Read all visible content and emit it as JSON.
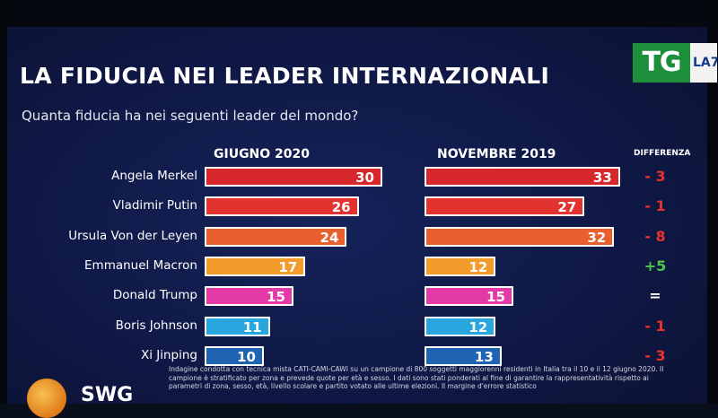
{
  "broadcaster": {
    "tg_label": "TG",
    "la7_label": "LA7"
  },
  "title": "LA FIDUCIA NEI LEADER INTERNAZIONALI",
  "subtitle": "Quanta fiducia ha nei seguenti leader del mondo?",
  "footnote": "Indagine condotta con tecnica mista CATI-CAMI-CAWI su un campione di 800 soggetti maggiorenni residenti in Italia tra il 10 e il 12 giugno 2020. Il campione è stratificato per zona e prevede quote per età e sesso. I dati sono stati ponderati al fine di garantire la rappresentatività rispetto ai parametri di zona, sesso, età, livello scolare e partito votato alle ultime elezioni. Il margine d'errore statistico",
  "source_label": "SWG",
  "colors": {
    "merkel": "#d7262c",
    "putin": "#e3332f",
    "vonderleyen": "#e8602e",
    "macron": "#f39b2b",
    "trump": "#e33aa8",
    "johnson": "#2aa6df",
    "xi": "#1f64b3",
    "diff_negative": "#e8322e",
    "diff_positive": "#4cc64c",
    "diff_equal": "#ffffff"
  },
  "chart_data": {
    "type": "bar",
    "orientation": "horizontal",
    "categories": [
      "Angela Merkel",
      "Vladimir Putin",
      "Ursula Von der Leyen",
      "Emmanuel Macron",
      "Donald Trump",
      "Boris Johnson",
      "Xi Jinping"
    ],
    "series": [
      {
        "name": "GIUGNO 2020",
        "values": [
          30,
          26,
          24,
          17,
          15,
          11,
          10
        ]
      },
      {
        "name": "NOVEMBRE 2019",
        "values": [
          33,
          27,
          32,
          12,
          15,
          12,
          13
        ]
      }
    ],
    "difference_label": "DIFFERENZA",
    "differences": [
      "- 3",
      "- 1",
      "- 8",
      "+5",
      "=",
      "- 1",
      "- 3"
    ],
    "xlim": [
      0,
      35
    ]
  }
}
